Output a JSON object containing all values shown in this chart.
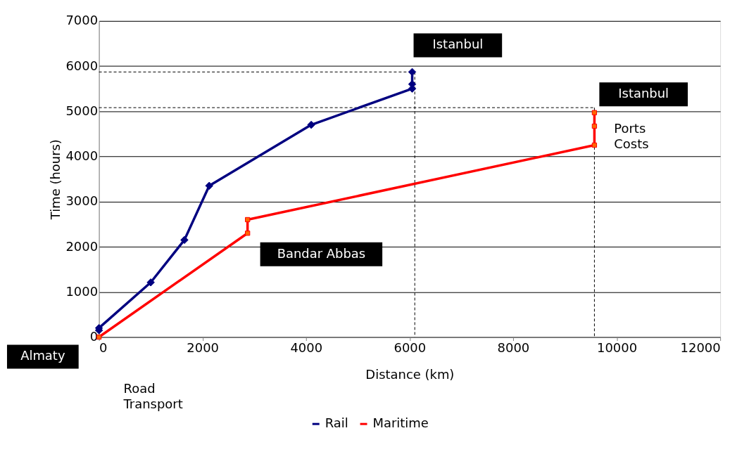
{
  "chart_data": {
    "type": "line",
    "xlabel": "Distance (km)",
    "ylabel": "Time (hours)",
    "xlim": [
      0,
      12000
    ],
    "xticks": [
      0,
      2000,
      4000,
      6000,
      8000,
      10000,
      12000
    ],
    "ylim": [
      0,
      7000
    ],
    "yticks": [
      0,
      1000,
      2000,
      3000,
      4000,
      5000,
      6000,
      7000
    ],
    "grid": "y",
    "legend": "bottom",
    "series": [
      {
        "color": "#000000",
        "marker": "none",
        "line_style": "dashed",
        "x": [
          0,
          6100
        ],
        "values": [
          5870,
          5870
        ]
      },
      {
        "color": "#000000",
        "marker": "none",
        "line_style": "dashed",
        "x": [
          6100,
          6100
        ],
        "values": [
          5870,
          0
        ]
      },
      {
        "color": "#000000",
        "marker": "none",
        "line_style": "dashed",
        "x": [
          0,
          9570
        ],
        "values": [
          5080,
          5080
        ]
      },
      {
        "color": "#000000",
        "marker": "none",
        "line_style": "dashed",
        "x": [
          9570,
          9570
        ],
        "values": [
          5080,
          0
        ]
      },
      {
        "name": "Rail",
        "color": "#000080",
        "marker": "diamond",
        "line_style": "solid",
        "x": [
          0,
          0,
          1000,
          1650,
          2130,
          4100,
          6050,
          6050,
          6050
        ],
        "values": [
          150,
          200,
          1210,
          2150,
          3350,
          4700,
          5500,
          5600,
          5870
        ]
      },
      {
        "name": "Maritime",
        "color": "#ff0000",
        "marker": "square",
        "line_style": "solid",
        "x": [
          0,
          2870,
          2870,
          9570,
          9570,
          9570
        ],
        "values": [
          0,
          2300,
          2600,
          4250,
          4670,
          4970
        ]
      }
    ],
    "annotations": [
      {
        "text": "Istanbul",
        "x": 6050,
        "y": 5870
      },
      {
        "text": "Istanbul",
        "x": 9570,
        "y": 4970
      },
      {
        "text": "Bandar Abbas",
        "x": 2870,
        "y": 2300
      },
      {
        "text": "Almaty",
        "x": 0,
        "y": 0
      },
      {
        "text": "Ports Costs",
        "x": 9570,
        "y": 4600
      },
      "Road Transport"
    ]
  }
}
